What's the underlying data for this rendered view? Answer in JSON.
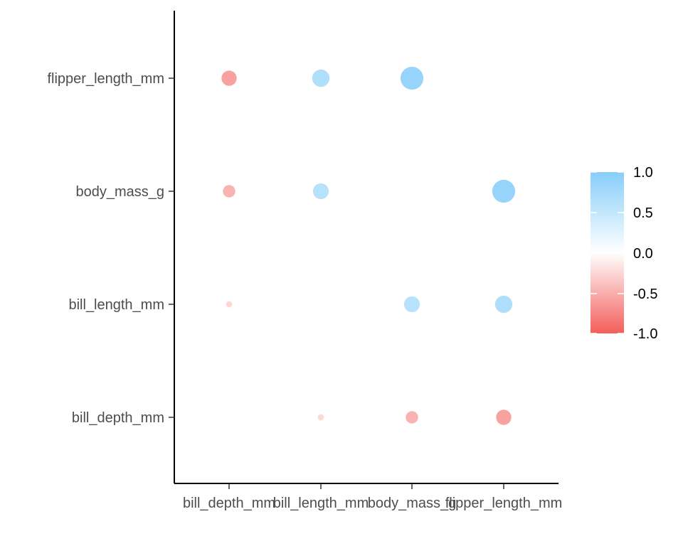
{
  "chart_data": {
    "type": "scatter",
    "variables": [
      "bill_depth_mm",
      "bill_length_mm",
      "body_mass_g",
      "flipper_length_mm"
    ],
    "x_categories": [
      "bill_depth_mm",
      "bill_length_mm",
      "body_mass_g",
      "flipper_length_mm"
    ],
    "y_categories": [
      "bill_depth_mm",
      "bill_length_mm",
      "body_mass_g",
      "flipper_length_mm"
    ],
    "points": [
      {
        "x": "bill_depth_mm",
        "y": "flipper_length_mm",
        "value": -0.58
      },
      {
        "x": "bill_length_mm",
        "y": "flipper_length_mm",
        "value": 0.66
      },
      {
        "x": "body_mass_g",
        "y": "flipper_length_mm",
        "value": 0.87
      },
      {
        "x": "bill_depth_mm",
        "y": "body_mass_g",
        "value": -0.47
      },
      {
        "x": "bill_length_mm",
        "y": "body_mass_g",
        "value": 0.6
      },
      {
        "x": "flipper_length_mm",
        "y": "body_mass_g",
        "value": 0.87
      },
      {
        "x": "bill_depth_mm",
        "y": "bill_length_mm",
        "value": -0.24
      },
      {
        "x": "body_mass_g",
        "y": "bill_length_mm",
        "value": 0.6
      },
      {
        "x": "flipper_length_mm",
        "y": "bill_length_mm",
        "value": 0.66
      },
      {
        "x": "bill_length_mm",
        "y": "bill_depth_mm",
        "value": -0.24
      },
      {
        "x": "body_mass_g",
        "y": "bill_depth_mm",
        "value": -0.47
      },
      {
        "x": "flipper_length_mm",
        "y": "bill_depth_mm",
        "value": -0.58
      }
    ],
    "legend": {
      "position": "right",
      "ticks": [
        "1.0",
        "0.5",
        "0.0",
        "-0.5",
        "-1.0"
      ],
      "range": [
        -1,
        1
      ],
      "color_high": "#87CEFA",
      "color_mid": "#FFFFFF",
      "color_low": "#F35E5A"
    },
    "grid": false
  }
}
